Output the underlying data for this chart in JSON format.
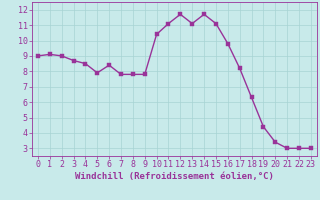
{
  "x": [
    0,
    1,
    2,
    3,
    4,
    5,
    6,
    7,
    8,
    9,
    10,
    11,
    12,
    13,
    14,
    15,
    16,
    17,
    18,
    19,
    20,
    21,
    22,
    23
  ],
  "y": [
    9.0,
    9.1,
    9.0,
    8.7,
    8.5,
    7.9,
    8.4,
    7.8,
    7.8,
    7.8,
    10.4,
    11.1,
    11.7,
    11.1,
    11.7,
    11.1,
    9.8,
    8.2,
    6.3,
    4.4,
    3.4,
    3.0,
    3.0,
    3.0
  ],
  "line_color": "#993399",
  "marker_color": "#993399",
  "bg_color": "#c8eaea",
  "grid_color": "#a8d4d4",
  "xlabel": "Windchill (Refroidissement éolien,°C)",
  "xlabel_color": "#993399",
  "tick_color": "#993399",
  "ylim": [
    2.5,
    12.5
  ],
  "xlim": [
    -0.5,
    23.5
  ],
  "yticks": [
    3,
    4,
    5,
    6,
    7,
    8,
    9,
    10,
    11,
    12
  ],
  "xticks": [
    0,
    1,
    2,
    3,
    4,
    5,
    6,
    7,
    8,
    9,
    10,
    11,
    12,
    13,
    14,
    15,
    16,
    17,
    18,
    19,
    20,
    21,
    22,
    23
  ],
  "marker_size": 2.5,
  "line_width": 1.0,
  "font_size_label": 6.5,
  "font_size_tick": 6.0
}
